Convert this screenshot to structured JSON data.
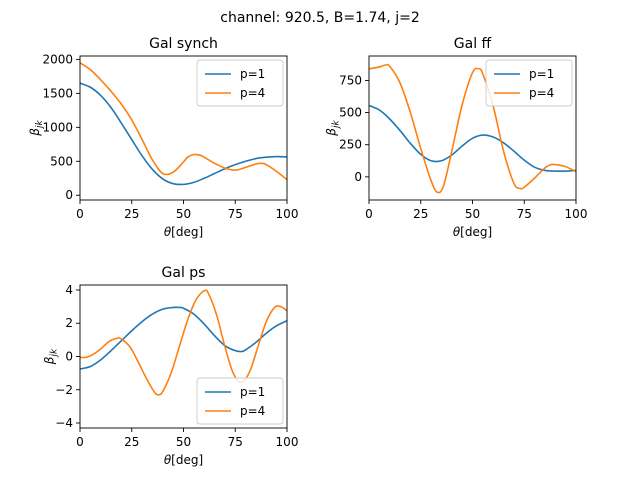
{
  "suptitle": "channel: 920.5, B=1.74, j=2",
  "colors": {
    "p1": "#1f77b4",
    "p4": "#ff7f0e"
  },
  "chart_data": [
    {
      "type": "line",
      "title": "Gal synch",
      "xlabel": "θ[deg]",
      "ylabel": "β_jk",
      "xlim": [
        0,
        100
      ],
      "ylim": [
        -70,
        2050
      ],
      "xticks": [
        0,
        25,
        50,
        75,
        100
      ],
      "yticks": [
        0,
        500,
        1000,
        1500,
        2000
      ],
      "legend": "top-right",
      "series": [
        {
          "name": "p=1",
          "color": "#1f77b4",
          "x": [
            0,
            5,
            10,
            15,
            20,
            25,
            30,
            35,
            40,
            45,
            50,
            55,
            60,
            65,
            70,
            75,
            80,
            85,
            90,
            95,
            100
          ],
          "y": [
            1650,
            1590,
            1470,
            1290,
            1060,
            820,
            580,
            380,
            240,
            170,
            160,
            190,
            250,
            320,
            390,
            450,
            500,
            540,
            560,
            570,
            565
          ]
        },
        {
          "name": "p=4",
          "color": "#ff7f0e",
          "x": [
            0,
            5,
            10,
            15,
            20,
            25,
            30,
            35,
            40,
            45,
            50,
            52,
            55,
            58,
            60,
            65,
            70,
            75,
            80,
            85,
            88,
            90,
            95,
            100
          ],
          "y": [
            1950,
            1850,
            1700,
            1530,
            1340,
            1110,
            820,
            520,
            320,
            340,
            490,
            560,
            600,
            590,
            560,
            470,
            400,
            370,
            410,
            460,
            470,
            450,
            350,
            230
          ]
        }
      ]
    },
    {
      "type": "line",
      "title": "Gal ff",
      "xlabel": "θ[deg]",
      "ylabel": "β_jk",
      "xlim": [
        0,
        100
      ],
      "ylim": [
        -180,
        940
      ],
      "xticks": [
        0,
        25,
        50,
        75,
        100
      ],
      "yticks": [
        0,
        250,
        500,
        750
      ],
      "legend": "top-right",
      "series": [
        {
          "name": "p=1",
          "color": "#1f77b4",
          "x": [
            0,
            5,
            10,
            15,
            20,
            25,
            30,
            35,
            40,
            45,
            50,
            55,
            60,
            65,
            70,
            75,
            80,
            85,
            90,
            95,
            100
          ],
          "y": [
            555,
            520,
            450,
            360,
            260,
            175,
            125,
            125,
            170,
            240,
            300,
            325,
            310,
            265,
            200,
            130,
            75,
            50,
            45,
            45,
            50
          ]
        },
        {
          "name": "p=4",
          "color": "#ff7f0e",
          "x": [
            0,
            5,
            8,
            10,
            15,
            20,
            25,
            30,
            33,
            36,
            40,
            45,
            50,
            53,
            55,
            60,
            65,
            70,
            73,
            75,
            80,
            85,
            88,
            90,
            95,
            100
          ],
          "y": [
            840,
            855,
            870,
            860,
            730,
            500,
            220,
            -30,
            -120,
            -70,
            200,
            560,
            810,
            840,
            800,
            550,
            200,
            -50,
            -90,
            -80,
            -10,
            70,
            95,
            95,
            80,
            40
          ]
        }
      ]
    },
    {
      "type": "line",
      "title": "Gal ps",
      "xlabel": "θ[deg]",
      "ylabel": "β_jk",
      "xlim": [
        0,
        100
      ],
      "ylim": [
        -4.3,
        4.3
      ],
      "xticks": [
        0,
        25,
        50,
        75,
        100
      ],
      "yticks": [
        -4,
        -2,
        0,
        2,
        4
      ],
      "legend": "bottom-right",
      "series": [
        {
          "name": "p=1",
          "color": "#1f77b4",
          "x": [
            0,
            5,
            10,
            15,
            20,
            25,
            30,
            35,
            40,
            45,
            48,
            50,
            55,
            60,
            65,
            70,
            75,
            78,
            80,
            85,
            90,
            95,
            100
          ],
          "y": [
            -0.75,
            -0.6,
            -0.2,
            0.35,
            0.95,
            1.55,
            2.1,
            2.55,
            2.85,
            2.95,
            2.95,
            2.9,
            2.55,
            1.95,
            1.25,
            0.65,
            0.35,
            0.3,
            0.4,
            0.85,
            1.4,
            1.85,
            2.15
          ]
        },
        {
          "name": "p=4",
          "color": "#ff7f0e",
          "x": [
            0,
            3,
            6,
            10,
            14,
            18,
            20,
            24,
            28,
            32,
            36,
            38,
            40,
            44,
            48,
            52,
            56,
            60,
            62,
            66,
            70,
            74,
            78,
            82,
            86,
            90,
            94,
            97,
            100
          ],
          "y": [
            -0.05,
            -0.05,
            0.1,
            0.45,
            0.9,
            1.1,
            1.05,
            0.6,
            -0.3,
            -1.3,
            -2.15,
            -2.3,
            -2.1,
            -1.0,
            0.6,
            2.2,
            3.4,
            3.95,
            3.8,
            2.5,
            0.6,
            -1.0,
            -1.55,
            -0.9,
            0.6,
            2.1,
            2.95,
            3.0,
            2.75
          ]
        }
      ]
    }
  ]
}
